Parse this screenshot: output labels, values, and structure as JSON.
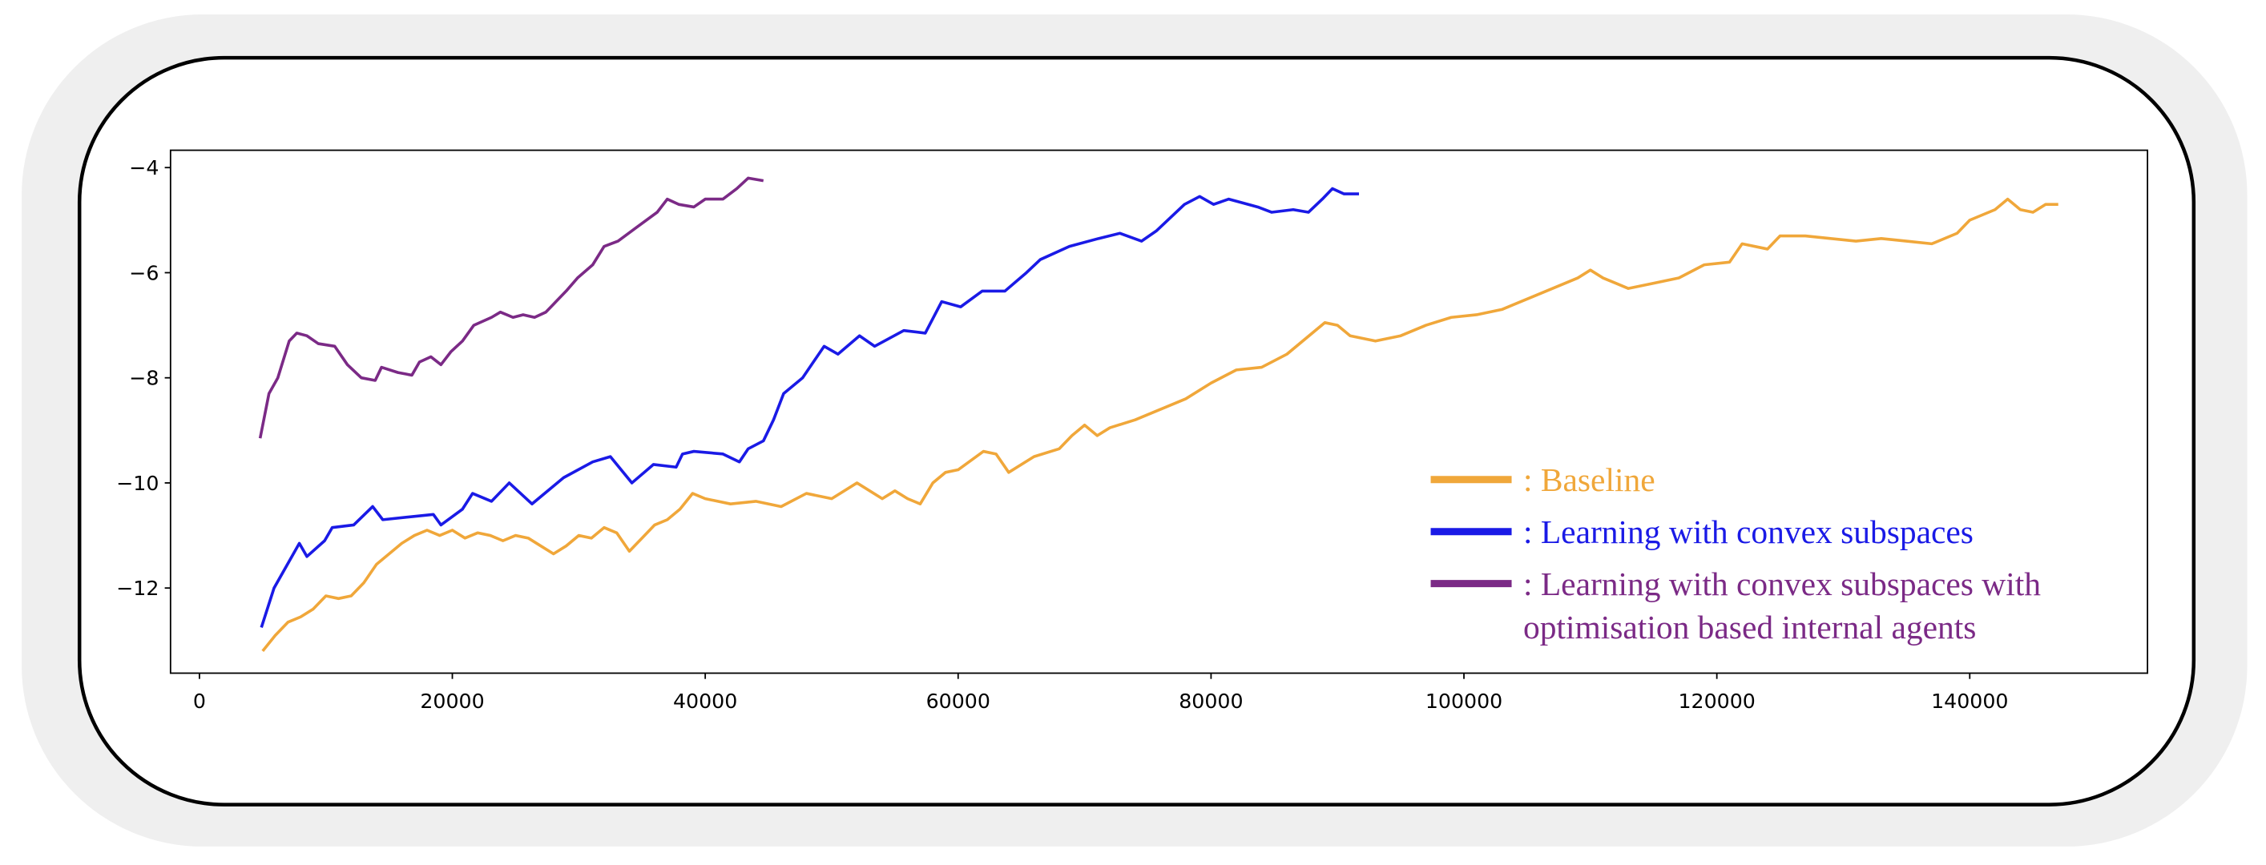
{
  "chart_data": {
    "type": "line",
    "xlim": [
      -2286,
      154057
    ],
    "ylim": [
      -13.62,
      -3.67
    ],
    "xticks": [
      0,
      20000,
      40000,
      60000,
      80000,
      100000,
      120000,
      140000
    ],
    "yticks": [
      {
        "value": -4,
        "label": "−4"
      },
      {
        "value": -6,
        "label": "−6"
      },
      {
        "value": -8,
        "label": "−8"
      },
      {
        "value": -10,
        "label": "−10"
      },
      {
        "value": -12,
        "label": "−12"
      }
    ],
    "legend": "lower right",
    "series": [
      {
        "name": ": Baseline",
        "color": "#f0a73a",
        "x": [
          5000,
          6000,
          7000,
          8000,
          9000,
          10000,
          11000,
          12000,
          13000,
          14000,
          15000,
          16000,
          17000,
          18000,
          19000,
          20000,
          21000,
          22000,
          23000,
          24000,
          25000,
          26000,
          27000,
          28000,
          29000,
          30000,
          31000,
          32000,
          33000,
          34000,
          35000,
          36000,
          37000,
          38000,
          39000,
          40000,
          42000,
          44000,
          46000,
          48000,
          50000,
          52000,
          54000,
          55000,
          56000,
          57000,
          58000,
          59000,
          60000,
          62000,
          63000,
          64000,
          66000,
          68000,
          69000,
          70000,
          71000,
          72000,
          74000,
          76000,
          78000,
          80000,
          82000,
          84000,
          86000,
          87000,
          89000,
          90000,
          91000,
          93000,
          95000,
          97000,
          99000,
          101000,
          103000,
          105000,
          107000,
          109000,
          110000,
          111000,
          112000,
          113000,
          115000,
          117000,
          119000,
          121000,
          122000,
          124000,
          125000,
          127000,
          129000,
          131000,
          133000,
          135000,
          137000,
          139000,
          140000,
          142000,
          143000,
          144000,
          145000,
          146000,
          147000
        ],
        "values": [
          -13.2,
          -12.9,
          -12.65,
          -12.55,
          -12.4,
          -12.15,
          -12.2,
          -12.15,
          -11.9,
          -11.55,
          -11.35,
          -11.15,
          -11.0,
          -10.9,
          -11.0,
          -10.9,
          -11.05,
          -10.95,
          -11.0,
          -11.1,
          -11.0,
          -11.05,
          -11.2,
          -11.35,
          -11.2,
          -11.0,
          -11.05,
          -10.85,
          -10.95,
          -11.3,
          -11.05,
          -10.8,
          -10.7,
          -10.5,
          -10.2,
          -10.3,
          -10.4,
          -10.35,
          -10.45,
          -10.2,
          -10.3,
          -10.0,
          -10.3,
          -10.15,
          -10.3,
          -10.4,
          -10.0,
          -9.8,
          -9.75,
          -9.4,
          -9.45,
          -9.8,
          -9.5,
          -9.35,
          -9.1,
          -8.9,
          -9.1,
          -8.95,
          -8.8,
          -8.6,
          -8.4,
          -8.1,
          -7.85,
          -7.8,
          -7.55,
          -7.35,
          -6.95,
          -7.0,
          -7.2,
          -7.3,
          -7.2,
          -7.0,
          -6.85,
          -6.8,
          -6.7,
          -6.5,
          -6.3,
          -6.1,
          -5.95,
          -6.1,
          -6.2,
          -6.3,
          -6.2,
          -6.1,
          -5.85,
          -5.8,
          -5.45,
          -5.55,
          -5.3,
          -5.3,
          -5.35,
          -5.4,
          -5.35,
          -5.4,
          -5.45,
          -5.25,
          -5.0,
          -4.8,
          -4.6,
          -4.8,
          -4.85,
          -4.7,
          -4.7
        ]
      },
      {
        "name": ": Learning with convex subspaces",
        "color": "#1a1ae6",
        "x": [
          4900,
          5900,
          7900,
          8500,
          9900,
          10500,
          12200,
          13700,
          14500,
          18500,
          19100,
          20800,
          21600,
          23100,
          24500,
          26300,
          28800,
          31100,
          32500,
          34200,
          35900,
          37700,
          38200,
          39100,
          41400,
          42700,
          43400,
          44600,
          45400,
          46200,
          47700,
          49400,
          50500,
          52200,
          53400,
          55700,
          57400,
          58700,
          60200,
          61900,
          63700,
          65400,
          66500,
          68800,
          71100,
          72800,
          74500,
          75700,
          76800,
          77900,
          79100,
          80200,
          81400,
          83700,
          84800,
          86500,
          87700,
          88800,
          89600,
          90500,
          91700
        ],
        "values": [
          -12.75,
          -12.0,
          -11.15,
          -11.4,
          -11.1,
          -10.85,
          -10.8,
          -10.45,
          -10.7,
          -10.6,
          -10.8,
          -10.5,
          -10.2,
          -10.35,
          -10.0,
          -10.4,
          -9.9,
          -9.6,
          -9.5,
          -10.0,
          -9.65,
          -9.7,
          -9.45,
          -9.4,
          -9.45,
          -9.6,
          -9.35,
          -9.2,
          -8.8,
          -8.3,
          -8.0,
          -7.4,
          -7.55,
          -7.2,
          -7.4,
          -7.1,
          -7.15,
          -6.55,
          -6.65,
          -6.35,
          -6.35,
          -6.0,
          -5.75,
          -5.5,
          -5.35,
          -5.25,
          -5.4,
          -5.2,
          -4.95,
          -4.7,
          -4.55,
          -4.7,
          -4.6,
          -4.75,
          -4.85,
          -4.8,
          -4.85,
          -4.6,
          -4.4,
          -4.5,
          -4.5
        ]
      },
      {
        "name": ": Learning with convex subspaces with optimisation based internal agents",
        "color": "#7b2a86",
        "x": [
          4800,
          5500,
          6200,
          7100,
          7700,
          8500,
          9400,
          10700,
          11700,
          12800,
          13900,
          14400,
          15700,
          16800,
          17400,
          18300,
          19100,
          19900,
          20800,
          21700,
          23100,
          23800,
          24800,
          25600,
          26500,
          27400,
          28200,
          29000,
          29900,
          31100,
          32000,
          33100,
          34500,
          36200,
          37000,
          37900,
          39100,
          40000,
          41400,
          42500,
          43400,
          44600
        ],
        "values": [
          -9.15,
          -8.3,
          -8.0,
          -7.3,
          -7.15,
          -7.2,
          -7.35,
          -7.4,
          -7.75,
          -8.0,
          -8.05,
          -7.8,
          -7.9,
          -7.95,
          -7.7,
          -7.6,
          -7.75,
          -7.5,
          -7.3,
          -7.0,
          -6.85,
          -6.75,
          -6.85,
          -6.8,
          -6.85,
          -6.75,
          -6.55,
          -6.35,
          -6.1,
          -5.85,
          -5.5,
          -5.4,
          -5.15,
          -4.85,
          -4.6,
          -4.7,
          -4.75,
          -4.6,
          -4.6,
          -4.4,
          -4.2,
          -4.25
        ]
      }
    ]
  }
}
